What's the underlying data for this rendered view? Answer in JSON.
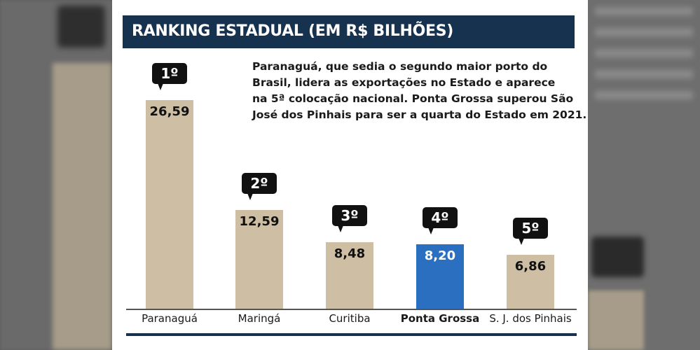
{
  "header": {
    "title": "RANKING ESTADUAL (EM R$ BILHÕES)"
  },
  "description": [
    "Paranaguá, que sedia o segundo maior porto do",
    "Brasil, lidera as exportações no Estado e aparece",
    "na 5ª colocação nacional. Ponta Grossa superou São",
    "José dos Pinhais para ser a quarta do Estado em 2021."
  ],
  "chart_data": {
    "type": "bar",
    "title": "RANKING ESTADUAL (EM R$ BILHÕES)",
    "categories": [
      "Paranaguá",
      "Maringá",
      "Curitiba",
      "Ponta Grossa",
      "S. J. dos Pinhais"
    ],
    "values": [
      26.59,
      12.59,
      8.48,
      8.2,
      6.86
    ],
    "value_labels": [
      "26,59",
      "12,59",
      "8,48",
      "8,20",
      "6,86"
    ],
    "ranks": [
      "1º",
      "2º",
      "3º",
      "4º",
      "5º"
    ],
    "highlight_index": 3,
    "highlight_color": "#2a6fc0",
    "bar_color": "#cdbea4",
    "grid": false
  }
}
